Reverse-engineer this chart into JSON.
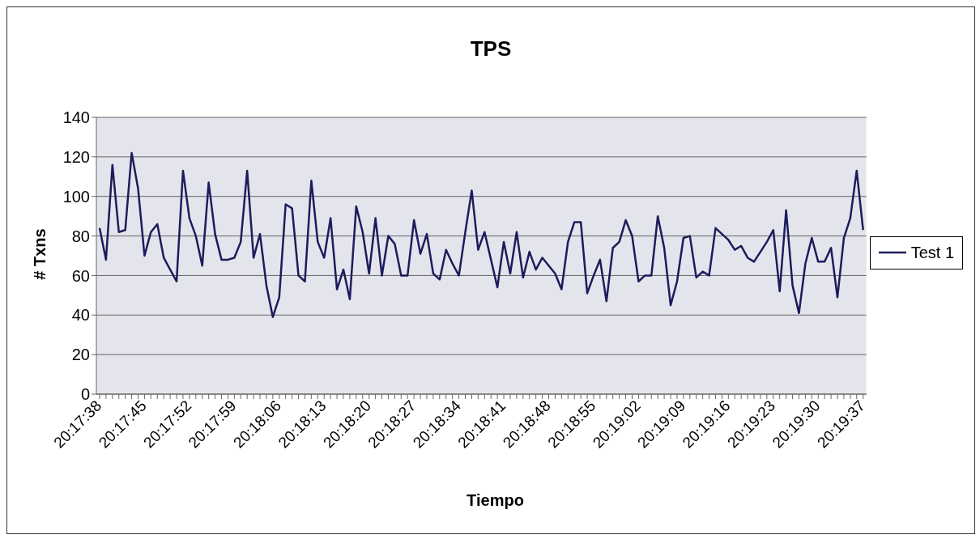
{
  "chart_data": {
    "type": "line",
    "title": "TPS",
    "xlabel": "Tiempo",
    "ylabel": "# Txns",
    "categories": [
      "20:17:38",
      null,
      null,
      null,
      null,
      null,
      null,
      "20:17:45",
      null,
      null,
      null,
      null,
      null,
      null,
      "20:17:52",
      null,
      null,
      null,
      null,
      null,
      null,
      "20:17:59",
      null,
      null,
      null,
      null,
      null,
      null,
      "20:18:06",
      null,
      null,
      null,
      null,
      null,
      null,
      "20:18:13",
      null,
      null,
      null,
      null,
      null,
      null,
      "20:18:20",
      null,
      null,
      null,
      null,
      null,
      null,
      "20:18:27",
      null,
      null,
      null,
      null,
      null,
      null,
      "20:18:34",
      null,
      null,
      null,
      null,
      null,
      null,
      "20:18:41",
      null,
      null,
      null,
      null,
      null,
      null,
      "20:18:48",
      null,
      null,
      null,
      null,
      null,
      null,
      "20:18:55",
      null,
      null,
      null,
      null,
      null,
      null,
      "20:19:02",
      null,
      null,
      null,
      null,
      null,
      null,
      "20:19:09",
      null,
      null,
      null,
      null,
      null,
      null,
      "20:19:16",
      null,
      null,
      null,
      null,
      null,
      null,
      "20:19:23",
      null,
      null,
      null,
      null,
      null,
      null,
      "20:19:30",
      null,
      null,
      null,
      null,
      null,
      null,
      "20:19:37"
    ],
    "series": [
      {
        "name": "Test 1",
        "color": "#1c1c5c",
        "values": [
          84,
          68,
          116,
          82,
          83,
          122,
          104,
          70,
          82,
          86,
          69,
          63,
          57,
          113,
          89,
          80,
          65,
          107,
          81,
          68,
          68,
          69,
          77,
          113,
          69,
          81,
          55,
          39,
          49,
          96,
          94,
          60,
          57,
          108,
          77,
          69,
          89,
          53,
          63,
          48,
          95,
          82,
          61,
          89,
          60,
          80,
          76,
          60,
          60,
          88,
          71,
          81,
          61,
          58,
          73,
          66,
          60,
          82,
          103,
          73,
          82,
          68,
          54,
          77,
          61,
          82,
          59,
          72,
          63,
          69,
          65,
          61,
          53,
          77,
          87,
          87,
          51,
          60,
          68,
          47,
          74,
          77,
          88,
          80,
          57,
          60,
          60,
          90,
          74,
          45,
          57,
          79,
          80,
          59,
          62,
          60,
          84,
          81,
          78,
          73,
          75,
          69,
          67,
          72,
          77,
          83,
          52,
          93,
          55,
          41,
          66,
          79,
          67,
          67,
          74,
          49,
          79,
          89,
          113,
          83
        ]
      }
    ],
    "ylim": [
      0,
      140
    ],
    "yticks": [
      0,
      20,
      40,
      60,
      80,
      100,
      120,
      140
    ],
    "grid": "y",
    "legend": "right",
    "marker": "none",
    "line_style": "solid"
  }
}
